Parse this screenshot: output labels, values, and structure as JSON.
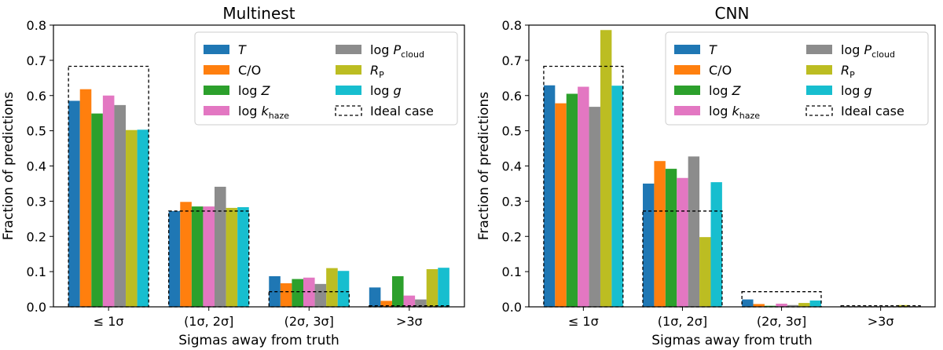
{
  "chart_data": [
    {
      "type": "bar",
      "title": "Multinest",
      "xlabel": "Sigmas away from truth",
      "ylabel": "Fraction of predictions",
      "ylim": [
        0,
        0.8
      ],
      "yticks": [
        "0.0",
        "0.1",
        "0.2",
        "0.3",
        "0.4",
        "0.5",
        "0.6",
        "0.7",
        "0.8"
      ],
      "categories": [
        "≤ 1σ",
        "(1σ, 2σ]",
        "(2σ, 3σ]",
        ">3σ"
      ],
      "series": [
        {
          "name": "T",
          "color": "#1f77b4",
          "values": [
            0.585,
            0.272,
            0.087,
            0.055
          ]
        },
        {
          "name": "C/O",
          "color": "#ff7f0e",
          "values": [
            0.618,
            0.298,
            0.067,
            0.017
          ]
        },
        {
          "name": "log Z",
          "color": "#2ca02c",
          "values": [
            0.549,
            0.285,
            0.079,
            0.087
          ]
        },
        {
          "name": "log k_haze",
          "color": "#e377c2",
          "values": [
            0.6,
            0.285,
            0.083,
            0.032
          ]
        },
        {
          "name": "log P_cloud",
          "color": "#8c8c8c",
          "values": [
            0.573,
            0.341,
            0.065,
            0.021
          ]
        },
        {
          "name": "R_P",
          "color": "#bcbd22",
          "values": [
            0.502,
            0.281,
            0.11,
            0.107
          ]
        },
        {
          "name": "log g",
          "color": "#17becf",
          "values": [
            0.503,
            0.283,
            0.102,
            0.111
          ]
        }
      ],
      "ideal_case": {
        "name": "Ideal case",
        "values": [
          0.683,
          0.272,
          0.043,
          0.003
        ]
      }
    },
    {
      "type": "bar",
      "title": "CNN",
      "xlabel": "Sigmas away from truth",
      "ylabel": "Fraction of predictions",
      "ylim": [
        0,
        0.8
      ],
      "yticks": [
        "0.0",
        "0.1",
        "0.2",
        "0.3",
        "0.4",
        "0.5",
        "0.6",
        "0.7",
        "0.8"
      ],
      "categories": [
        "≤ 1σ",
        "(1σ, 2σ]",
        "(2σ, 3σ]",
        ">3σ"
      ],
      "series": [
        {
          "name": "T",
          "color": "#1f77b4",
          "values": [
            0.629,
            0.35,
            0.021,
            0.001
          ]
        },
        {
          "name": "C/O",
          "color": "#ff7f0e",
          "values": [
            0.578,
            0.414,
            0.008,
            0.0
          ]
        },
        {
          "name": "log Z",
          "color": "#2ca02c",
          "values": [
            0.605,
            0.392,
            0.003,
            0.0
          ]
        },
        {
          "name": "log k_haze",
          "color": "#e377c2",
          "values": [
            0.625,
            0.366,
            0.009,
            0.0
          ]
        },
        {
          "name": "log P_cloud",
          "color": "#8c8c8c",
          "values": [
            0.568,
            0.427,
            0.005,
            0.0
          ]
        },
        {
          "name": "R_P",
          "color": "#bcbd22",
          "values": [
            0.786,
            0.198,
            0.011,
            0.005
          ]
        },
        {
          "name": "log g",
          "color": "#17becf",
          "values": [
            0.628,
            0.354,
            0.018,
            0.0
          ]
        }
      ],
      "ideal_case": {
        "name": "Ideal case",
        "values": [
          0.683,
          0.272,
          0.043,
          0.003
        ]
      }
    }
  ]
}
